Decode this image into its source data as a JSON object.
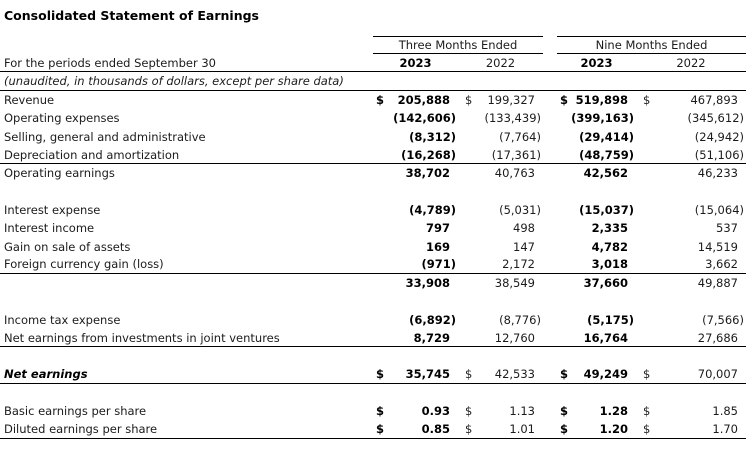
{
  "title": "Consolidated Statement of Earnings",
  "header": {
    "period_label": "For the periods ended September 30",
    "note": "(unaudited, in thousands of dollars, except per share data)",
    "groups": [
      {
        "label": "Three Months Ended",
        "years": [
          "2023",
          "2022"
        ]
      },
      {
        "label": "Nine Months Ended",
        "years": [
          "2023",
          "2022"
        ]
      }
    ]
  },
  "table": {
    "currency": "$",
    "columns": [
      "Three Months Ended 2023",
      "Three Months Ended 2022",
      "Nine Months Ended 2023",
      "Nine Months Ended 2022"
    ],
    "rows": [
      {
        "label": "Revenue",
        "dollar": true,
        "values": [
          "205,888",
          "199,327",
          "519,898",
          "467,893"
        ],
        "rule": false
      },
      {
        "label": "Operating expenses",
        "dollar": false,
        "values": [
          "(142,606)",
          "(133,439)",
          "(399,163)",
          "(345,612)"
        ],
        "rule": false
      },
      {
        "label": "Selling, general and administrative",
        "dollar": false,
        "values": [
          "(8,312)",
          "(7,764)",
          "(29,414)",
          "(24,942)"
        ],
        "rule": false
      },
      {
        "label": "Depreciation and amortization",
        "dollar": false,
        "values": [
          "(16,268)",
          "(17,361)",
          "(48,759)",
          "(51,106)"
        ],
        "rule": true
      },
      {
        "label": "Operating earnings",
        "dollar": false,
        "values": [
          "38,702",
          "40,763",
          "42,562",
          "46,233"
        ],
        "rule": false
      },
      {
        "type": "spacer"
      },
      {
        "label": "Interest expense",
        "dollar": false,
        "values": [
          "(4,789)",
          "(5,031)",
          "(15,037)",
          "(15,064)"
        ],
        "rule": false
      },
      {
        "label": "Interest income",
        "dollar": false,
        "values": [
          "797",
          "498",
          "2,335",
          "537"
        ],
        "rule": false
      },
      {
        "label": "Gain on sale of assets",
        "dollar": false,
        "values": [
          "169",
          "147",
          "4,782",
          "14,519"
        ],
        "rule": false
      },
      {
        "label": "Foreign currency gain (loss)",
        "dollar": false,
        "values": [
          "(971)",
          "2,172",
          "3,018",
          "3,662"
        ],
        "rule": true
      },
      {
        "label": "",
        "dollar": false,
        "values": [
          "33,908",
          "38,549",
          "37,660",
          "49,887"
        ],
        "rule": false
      },
      {
        "type": "spacer"
      },
      {
        "label": "Income tax expense",
        "dollar": false,
        "values": [
          "(6,892)",
          "(8,776)",
          "(5,175)",
          "(7,566)"
        ],
        "rule": false
      },
      {
        "label": "Net earnings from investments in joint ventures",
        "dollar": false,
        "values": [
          "8,729",
          "12,760",
          "16,764",
          "27,686"
        ],
        "rule": true
      },
      {
        "type": "spacer"
      },
      {
        "label": "Net earnings",
        "emphasis": true,
        "dollar": true,
        "values": [
          "35,745",
          "42,533",
          "49,249",
          "70,007"
        ],
        "rule": true
      },
      {
        "type": "spacer"
      },
      {
        "label": "Basic earnings per share",
        "dollar": true,
        "values": [
          "0.93",
          "1.13",
          "1.28",
          "1.85"
        ],
        "rule": false
      },
      {
        "label": "Diluted earnings per share",
        "dollar": true,
        "values": [
          "0.85",
          "1.01",
          "1.20",
          "1.70"
        ],
        "rule": true
      }
    ]
  },
  "colors": {
    "background": "#ffffff",
    "text": "#1b1b1b",
    "bold_text": "#000000",
    "rule_line": "#000000"
  }
}
